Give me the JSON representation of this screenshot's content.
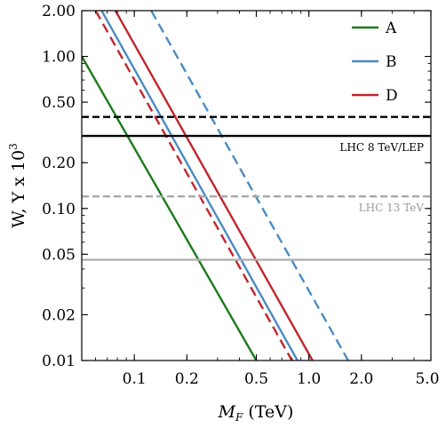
{
  "chart_data": {
    "type": "line",
    "title": "",
    "xlabel_main": "M",
    "xlabel_sub": "F",
    "xlabel_rest": " (TeV)",
    "ylabel": "W, Y x 10",
    "ylabel_exp": "3",
    "x_scale": "log",
    "y_scale": "log",
    "xlim": [
      0.05,
      5.0
    ],
    "ylim": [
      0.01,
      2.0
    ],
    "x_ticks": [
      {
        "value": 0.1,
        "label": "0.1"
      },
      {
        "value": 0.2,
        "label": "0.2"
      },
      {
        "value": 0.5,
        "label": "0.5"
      },
      {
        "value": 1.0,
        "label": "1.0"
      },
      {
        "value": 2.0,
        "label": "2.0"
      },
      {
        "value": 5.0,
        "label": "5.0"
      }
    ],
    "y_ticks": [
      {
        "value": 0.01,
        "label": "0.01"
      },
      {
        "value": 0.02,
        "label": "0.02"
      },
      {
        "value": 0.05,
        "label": "0.05"
      },
      {
        "value": 0.1,
        "label": "0.10"
      },
      {
        "value": 0.2,
        "label": "0.20"
      },
      {
        "value": 0.5,
        "label": "0.50"
      },
      {
        "value": 1.0,
        "label": "1.00"
      },
      {
        "value": 2.0,
        "label": "2.00"
      }
    ],
    "grid": false,
    "legend_position": "top-right",
    "series": [
      {
        "name": "A",
        "color": "#1a7a1a",
        "style": "solid",
        "x": [
          0.05,
          0.5
        ],
        "y": [
          1.0,
          0.01
        ]
      },
      {
        "name": "B",
        "color": "#4a8bc4",
        "style": "solid",
        "x": [
          0.065,
          0.86
        ],
        "y": [
          2.0,
          0.01
        ]
      },
      {
        "name": "D",
        "color": "#c0262d",
        "style": "solid",
        "x": [
          0.078,
          1.05
        ],
        "y": [
          2.0,
          0.01
        ]
      },
      {
        "name": "",
        "color": "#c0262d",
        "style": "dashed",
        "x": [
          0.06,
          0.8
        ],
        "y": [
          2.0,
          0.01
        ]
      },
      {
        "name": "",
        "color": "#4a8bc4",
        "style": "dashed",
        "x": [
          0.125,
          1.68
        ],
        "y": [
          2.0,
          0.01
        ]
      }
    ],
    "horizontal_lines": [
      {
        "y": 0.4,
        "color": "#000000",
        "style": "dashed",
        "label": ""
      },
      {
        "y": 0.3,
        "color": "#000000",
        "style": "solid",
        "label": "LHC 8 TeV/LEP",
        "label_color": "#000000"
      },
      {
        "y": 0.12,
        "color": "#a8a8a8",
        "style": "dashed",
        "label": "LHC 13 TeV",
        "label_color": "#9a9a9a"
      },
      {
        "y": 0.046,
        "color": "#b0b0b0",
        "style": "solid",
        "label": ""
      }
    ]
  }
}
